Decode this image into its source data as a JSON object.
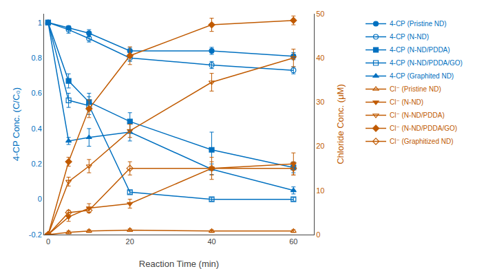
{
  "chart_data": {
    "type": "line",
    "xlabel": "Reaction Time (min)",
    "ylabel": "4-CP Conc. (C/C₀)",
    "y2label": "Chloride Conc. (μM)",
    "x": [
      0,
      5,
      10,
      20,
      40,
      60
    ],
    "xlim": [
      -1,
      65
    ],
    "xticks": [
      0,
      20,
      40,
      60
    ],
    "ylim": [
      -0.2,
      1.05
    ],
    "yticks": [
      -0.2,
      0,
      0.2,
      0.4,
      0.6,
      0.8,
      1
    ],
    "y2lim": [
      0,
      50
    ],
    "y2ticks": [
      0,
      10,
      20,
      30,
      40,
      50
    ],
    "grid": false,
    "legend": "right",
    "series": [
      {
        "name": "4-CP (Pristine ND)",
        "color": "#0070C0",
        "marker": "circle",
        "values": [
          1.0,
          0.97,
          0.94,
          0.84,
          0.84,
          0.81
        ],
        "errors": [
          0.0,
          0.01,
          0.02,
          0.02,
          0.02,
          0.02
        ]
      },
      {
        "name": "4-CP (N-ND)",
        "color": "#0070C0",
        "marker": "circle-open",
        "values": [
          1.0,
          0.96,
          0.91,
          0.8,
          0.76,
          0.73
        ],
        "errors": [
          0.0,
          0.02,
          0.02,
          0.02,
          0.02,
          0.02
        ]
      },
      {
        "name": "4-CP (N-ND/PDDA)",
        "color": "#0070C0",
        "marker": "square",
        "values": [
          1.0,
          0.67,
          0.55,
          0.44,
          0.28,
          0.18
        ],
        "errors": [
          0.0,
          0.04,
          0.05,
          0.05,
          0.1,
          0.03
        ]
      },
      {
        "name": "4-CP (N-ND/PDDA/GO)",
        "color": "#0070C0",
        "marker": "square-open",
        "values": [
          1.0,
          0.56,
          0.53,
          0.04,
          0.0,
          0.0
        ],
        "errors": [
          0.0,
          0.04,
          0.05,
          0.01,
          0.01,
          0.01
        ]
      },
      {
        "name": "4-CP (Graphited ND)",
        "color": "#0070C0",
        "marker": "triangle-up",
        "values": [
          1.0,
          0.33,
          0.35,
          0.38,
          0.17,
          0.05
        ],
        "errors": [
          0.0,
          0.02,
          0.05,
          0.05,
          0.03,
          0.02
        ]
      },
      {
        "name": "Cl⁻ (Pristine ND)",
        "color": "#C05A00",
        "marker": "triangle-up-open",
        "axis": "y2",
        "values": [
          0.0,
          0.5,
          0.8,
          1.0,
          0.8,
          0.8
        ],
        "errors": [
          0.0,
          0.3,
          0.3,
          0.3,
          0.3,
          0.3
        ]
      },
      {
        "name": "Cl⁻ (N-ND)",
        "color": "#C05A00",
        "marker": "triangle-down",
        "axis": "y2",
        "values": [
          0.0,
          4.0,
          6.0,
          7.0,
          15.0,
          16.0
        ],
        "errors": [
          0.0,
          1.0,
          1.0,
          1.0,
          2.5,
          2.5
        ]
      },
      {
        "name": "Cl⁻ (N-ND/PDDA)",
        "color": "#C05A00",
        "marker": "triangle-down-open",
        "axis": "y2",
        "values": [
          0.0,
          12.0,
          15.5,
          23.5,
          34.5,
          40.0
        ],
        "errors": [
          0.0,
          1.0,
          1.5,
          1.5,
          2.0,
          2.0
        ]
      },
      {
        "name": "Cl⁻ (N-ND/PDDA/GO)",
        "color": "#C05A00",
        "marker": "diamond",
        "axis": "y2",
        "values": [
          0.0,
          16.5,
          28.5,
          40.5,
          47.5,
          48.5
        ],
        "errors": [
          0.0,
          1.0,
          2.0,
          2.0,
          1.5,
          1.0
        ]
      },
      {
        "name": "Cl⁻ (Graphitized ND)",
        "color": "#C05A00",
        "marker": "diamond-open",
        "axis": "y2",
        "values": [
          0.0,
          5.0,
          5.5,
          15.0,
          15.0,
          15.0
        ],
        "errors": [
          0.0,
          0.5,
          0.5,
          1.5,
          1.5,
          1.5
        ]
      }
    ]
  }
}
